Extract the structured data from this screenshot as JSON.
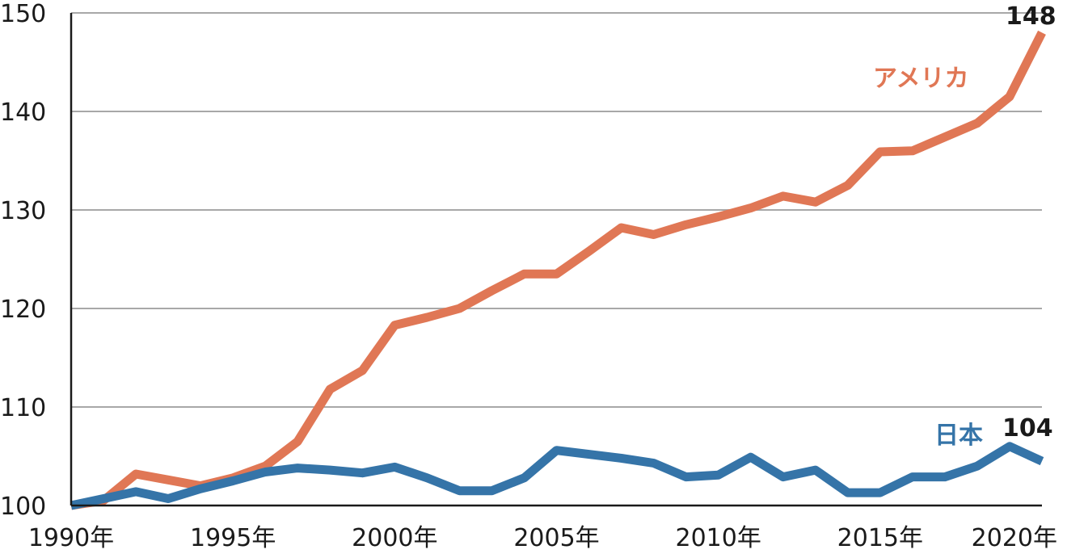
{
  "chart_data": {
    "type": "line",
    "x": [
      1990,
      1991,
      1992,
      1993,
      1994,
      1995,
      1996,
      1997,
      1998,
      1999,
      2000,
      2001,
      2002,
      2003,
      2004,
      2005,
      2006,
      2007,
      2008,
      2009,
      2010,
      2011,
      2012,
      2013,
      2014,
      2015,
      2016,
      2017,
      2018,
      2019,
      2020
    ],
    "x_tick_labels": [
      {
        "x": 1990,
        "label": "1990年"
      },
      {
        "x": 1995,
        "label": "1995年"
      },
      {
        "x": 2000,
        "label": "2000年"
      },
      {
        "x": 2005,
        "label": "2005年"
      },
      {
        "x": 2010,
        "label": "2010年"
      },
      {
        "x": 2015,
        "label": "2015年"
      },
      {
        "x": 2020,
        "label": "2020年"
      }
    ],
    "y_ticks": [
      100,
      110,
      120,
      130,
      140,
      150
    ],
    "ylim": [
      100,
      150
    ],
    "xlim": [
      1990,
      2020
    ],
    "grid": true,
    "series": [
      {
        "name": "アメリカ",
        "color": "#e07755",
        "values": [
          100,
          100.5,
          103.2,
          102.6,
          102.0,
          102.8,
          104.0,
          106.5,
          111.8,
          113.7,
          118.3,
          119.1,
          120.0,
          121.8,
          123.5,
          123.5,
          125.8,
          128.2,
          127.5,
          128.5,
          129.3,
          130.2,
          131.4,
          130.8,
          132.5,
          135.9,
          136.0,
          137.4,
          138.8,
          141.5,
          148.0
        ],
        "end_label": "148"
      },
      {
        "name": "日本",
        "color": "#3574a8",
        "values": [
          100,
          100.7,
          101.4,
          100.7,
          101.7,
          102.5,
          103.4,
          103.8,
          103.6,
          103.3,
          103.9,
          102.8,
          101.5,
          101.5,
          102.8,
          105.6,
          105.2,
          104.8,
          104.3,
          102.9,
          103.1,
          104.9,
          102.9,
          103.6,
          101.3,
          101.3,
          102.9,
          102.9,
          104.0,
          106.0,
          104.5
        ],
        "end_label": "104"
      }
    ],
    "title": "",
    "xlabel": "",
    "ylabel": ""
  }
}
